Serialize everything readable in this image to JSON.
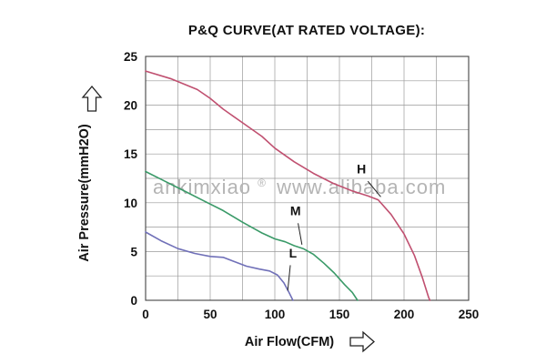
{
  "title": "P&Q CURVE(AT RATED VOLTAGE):",
  "watermark": {
    "text1": "ankimxiao",
    "reg": "®",
    "text2": "www.alibaba.com"
  },
  "icons": {
    "y_axis_arrow": "up-outline-arrow",
    "x_axis_arrow": "right-outline-arrow"
  },
  "chart_data": {
    "type": "line",
    "title": "P&Q CURVE(AT RATED VOLTAGE):",
    "xlabel": "Air Flow(CFM)",
    "ylabel": "Air Pressure(mmH2O)",
    "xlim": [
      0,
      250
    ],
    "ylim": [
      0,
      25
    ],
    "x_ticks": [
      0,
      50,
      100,
      150,
      200,
      250
    ],
    "y_ticks": [
      0,
      5,
      10,
      15,
      20,
      25
    ],
    "grid": {
      "minor_x": 25,
      "minor_y": 2.5,
      "on": true
    },
    "legend_position": "inline-labels",
    "series": [
      {
        "name": "H",
        "color": "#c05070",
        "points": [
          [
            0,
            23.5
          ],
          [
            20,
            22.7
          ],
          [
            40,
            21.6
          ],
          [
            50,
            20.7
          ],
          [
            60,
            19.6
          ],
          [
            75,
            18.2
          ],
          [
            90,
            16.8
          ],
          [
            100,
            15.6
          ],
          [
            115,
            14.2
          ],
          [
            130,
            13.0
          ],
          [
            145,
            12.0
          ],
          [
            160,
            11.2
          ],
          [
            172,
            10.7
          ],
          [
            180,
            10.3
          ],
          [
            190,
            8.8
          ],
          [
            200,
            6.8
          ],
          [
            208,
            4.6
          ],
          [
            214,
            2.4
          ],
          [
            219,
            0.3
          ],
          [
            220,
            0
          ]
        ]
      },
      {
        "name": "M",
        "color": "#3a9a68",
        "points": [
          [
            0,
            13.2
          ],
          [
            15,
            12.2
          ],
          [
            30,
            11.2
          ],
          [
            45,
            10.2
          ],
          [
            60,
            9.2
          ],
          [
            75,
            8.0
          ],
          [
            90,
            6.9
          ],
          [
            100,
            6.3
          ],
          [
            108,
            6.0
          ],
          [
            115,
            5.6
          ],
          [
            122,
            5.3
          ],
          [
            130,
            4.7
          ],
          [
            138,
            3.8
          ],
          [
            146,
            2.8
          ],
          [
            154,
            1.6
          ],
          [
            160,
            0.8
          ],
          [
            164,
            0
          ]
        ]
      },
      {
        "name": "L",
        "color": "#7070b8",
        "points": [
          [
            0,
            7.0
          ],
          [
            12,
            6.1
          ],
          [
            25,
            5.3
          ],
          [
            38,
            4.8
          ],
          [
            50,
            4.5
          ],
          [
            60,
            4.4
          ],
          [
            68,
            4.0
          ],
          [
            78,
            3.5
          ],
          [
            88,
            3.2
          ],
          [
            96,
            3.0
          ],
          [
            102,
            2.6
          ],
          [
            107,
            1.8
          ],
          [
            111,
            0.8
          ],
          [
            114,
            0
          ]
        ]
      }
    ],
    "annotations": [
      {
        "text": "H",
        "x": 167,
        "y": 13.0,
        "leader": [
          [
            172,
            12.2
          ],
          [
            182,
            10.6
          ]
        ]
      },
      {
        "text": "M",
        "x": 116,
        "y": 8.7,
        "leader": [
          [
            118,
            7.9
          ],
          [
            121,
            5.7
          ]
        ]
      },
      {
        "text": "L",
        "x": 114,
        "y": 4.4,
        "leader": [
          [
            112,
            3.6
          ],
          [
            110,
            1.0
          ]
        ]
      }
    ]
  }
}
